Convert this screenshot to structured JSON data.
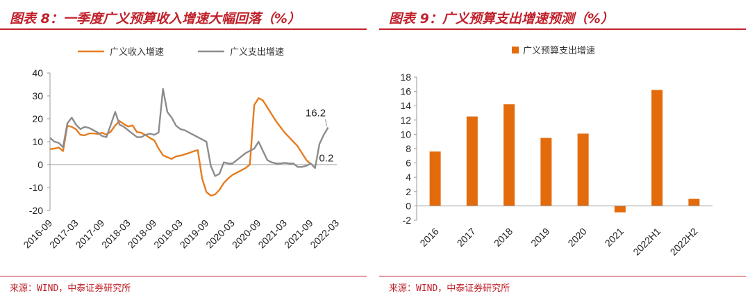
{
  "left": {
    "title": "图表 8：一季度广义预算收入增速大幅回落（%）",
    "source": "来源：WIND，中泰证券研究所"
  },
  "right": {
    "title": "图表 9：广义预算支出增速预测（%）",
    "source": "来源：WIND，中泰证券研究所"
  },
  "chart_data": [
    {
      "type": "line",
      "ylim": [
        -20,
        40
      ],
      "yticks": [
        -20,
        -10,
        0,
        10,
        20,
        30,
        40
      ],
      "x_tick_labels": [
        "2016-09",
        "2017-03",
        "2017-09",
        "2018-03",
        "2018-09",
        "2019-03",
        "2019-09",
        "2020-03",
        "2020-09",
        "2021-03",
        "2021-09",
        "2022-03"
      ],
      "legend_position": "top",
      "x": [
        "2016-09",
        "2016-10",
        "2016-11",
        "2016-12",
        "2017-01",
        "2017-02",
        "2017-03",
        "2017-04",
        "2017-05",
        "2017-06",
        "2017-07",
        "2017-08",
        "2017-09",
        "2017-10",
        "2017-11",
        "2017-12",
        "2018-01",
        "2018-02",
        "2018-03",
        "2018-04",
        "2018-05",
        "2018-06",
        "2018-07",
        "2018-08",
        "2018-09",
        "2018-10",
        "2018-11",
        "2018-12",
        "2019-01",
        "2019-02",
        "2019-03",
        "2019-04",
        "2019-05",
        "2019-06",
        "2019-07",
        "2019-08",
        "2019-09",
        "2019-10",
        "2019-11",
        "2019-12",
        "2020-01",
        "2020-02",
        "2020-03",
        "2020-04",
        "2020-05",
        "2020-06",
        "2020-07",
        "2020-08",
        "2020-09",
        "2020-10",
        "2020-11",
        "2020-12",
        "2021-01",
        "2021-02",
        "2021-03",
        "2021-04",
        "2021-05",
        "2021-06",
        "2021-07",
        "2021-08",
        "2021-09",
        "2021-10",
        "2021-11",
        "2021-12",
        "2022-01",
        "2022-02",
        "2022-03"
      ],
      "series": [
        {
          "name": "广义收入增速",
          "color": "#e57c1f",
          "values": [
            6.8,
            7.0,
            7.5,
            5.9,
            17.0,
            16.5,
            15.4,
            13.0,
            12.8,
            13.6,
            13.6,
            13.4,
            13.9,
            13.1,
            14.4,
            17.1,
            19.0,
            17.7,
            16.6,
            17.1,
            14.2,
            13.9,
            12.9,
            11.6,
            10.6,
            7.0,
            4.1,
            3.2,
            2.5,
            3.6,
            3.9,
            4.5,
            5.1,
            5.8,
            6.3,
            -6.0,
            -12.0,
            -13.5,
            -13.0,
            -11.0,
            -8.0,
            -6.0,
            -4.5,
            -3.5,
            -2.5,
            -1.5,
            0.0,
            26.0,
            29.0,
            28.0,
            25.0,
            22.0,
            19.0,
            16.5,
            14.0,
            12.0,
            10.0,
            8.0,
            5.0,
            2.0,
            0.2,
            null,
            null,
            null,
            null,
            null,
            null
          ]
        },
        {
          "name": "广义支出增速",
          "color": "#8c8c8c",
          "values": [
            11.7,
            10.0,
            9.5,
            7.6,
            18.0,
            20.5,
            17.4,
            15.5,
            16.5,
            16.0,
            15.0,
            14.0,
            12.5,
            12.0,
            17.5,
            23.0,
            17.5,
            16.5,
            15.0,
            13.5,
            12.0,
            12.0,
            13.0,
            13.5,
            13.0,
            14.0,
            33.0,
            23.0,
            20.5,
            17.0,
            15.5,
            15.0,
            14.0,
            13.0,
            12.0,
            11.0,
            10.0,
            -0.5,
            -5.0,
            -4.0,
            1.0,
            0.5,
            0.5,
            2.0,
            3.5,
            5.0,
            6.0,
            7.0,
            10.0,
            6.0,
            2.0,
            1.0,
            0.5,
            0.5,
            0.8,
            0.5,
            0.5,
            -1.0,
            -1.0,
            -0.5,
            0.5,
            -1.5,
            9.0,
            13.0,
            16.2,
            null,
            null
          ]
        }
      ],
      "annotations": [
        "16.2",
        "0.2"
      ]
    },
    {
      "type": "bar",
      "categories": [
        "2016",
        "2017",
        "2018",
        "2019",
        "2020",
        "2021",
        "2022H1",
        "2022H2"
      ],
      "series": [
        {
          "name": "广义预算支出增速",
          "color": "#e36b0c",
          "values": [
            7.6,
            12.5,
            14.2,
            9.5,
            10.1,
            -0.9,
            16.2,
            1.0
          ]
        }
      ],
      "ylim": [
        -2,
        18
      ],
      "yticks": [
        -2,
        0,
        2,
        4,
        6,
        8,
        10,
        12,
        14,
        16,
        18
      ],
      "legend_position": "top"
    }
  ]
}
